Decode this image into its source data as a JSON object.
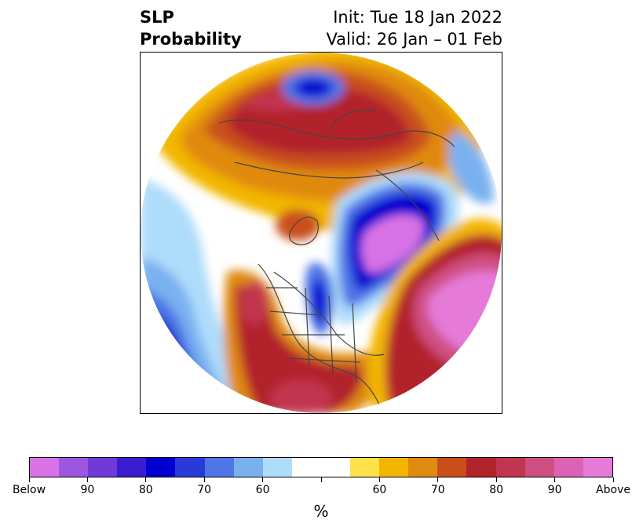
{
  "title": {
    "left_line1": "SLP",
    "left_line2": "Probability",
    "right_line1": "Init: Tue 18 Jan 2022",
    "right_line2": "Valid: 26 Jan – 01 Feb"
  },
  "colorbar": {
    "colors": [
      "#d872e6",
      "#9d56e0",
      "#7039d8",
      "#3c1cd0",
      "#0000d0",
      "#2a3ad8",
      "#4e76e6",
      "#79b1f0",
      "#aedcfb",
      "#ffffff",
      "#ffffff",
      "#ffe14a",
      "#f2b600",
      "#e08a10",
      "#c94f1a",
      "#b2232a",
      "#c23550",
      "#cf4f82",
      "#dc62b6",
      "#e57ad8"
    ],
    "tick_labels": [
      "Below",
      "90",
      "80",
      "70",
      "60",
      "",
      "60",
      "70",
      "80",
      "90",
      "Above"
    ],
    "unit": "%"
  },
  "map": {
    "description_colors": {
      "above_high": "#e57ad8",
      "above_mid": "#b2232a",
      "above_low": "#f2b600",
      "below_high": "#d872e6",
      "below_mid": "#0000d0",
      "below_low": "#aedcfb"
    }
  }
}
